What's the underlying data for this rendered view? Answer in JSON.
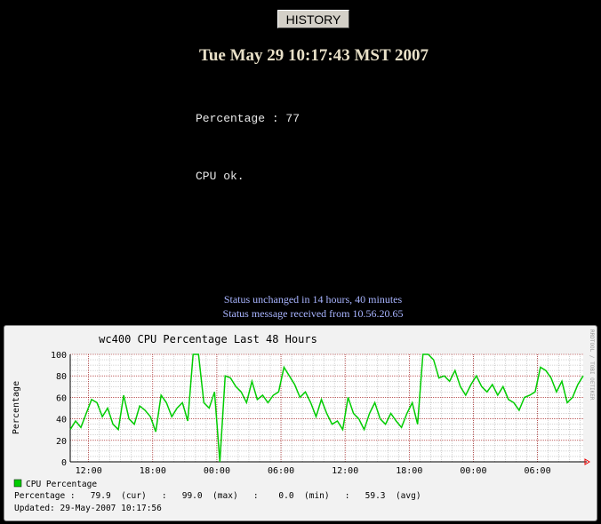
{
  "history_button": "HISTORY",
  "date": "Tue May 29 10:17:43 MST 2007",
  "percentage_line": "Percentage : 77",
  "status_text": "CPU ok.",
  "status_unchanged": "Status unchanged in 14 hours, 40 minutes",
  "status_received": "Status message received from 10.56.20.65",
  "colors": {
    "line": "#00cc00",
    "major_grid": "#990000",
    "minor_grid": "#aaaaaa"
  },
  "chart_data": {
    "type": "line",
    "title": "wc400 CPU Percentage Last 48 Hours",
    "ylabel": "Percentage",
    "xlabel": "",
    "ylim": [
      0,
      100
    ],
    "yticks": [
      "0",
      "20",
      "40",
      "60",
      "80",
      "100"
    ],
    "xticks": [
      "12:00",
      "18:00",
      "00:00",
      "06:00",
      "12:00",
      "18:00",
      "00:00",
      "06:00"
    ],
    "xtick_hours_from_start": [
      1.72,
      7.72,
      13.72,
      19.72,
      25.72,
      31.72,
      37.72,
      43.72
    ],
    "x_range_hours": [
      0,
      48
    ],
    "sample_interval_hours": 0.5,
    "grid": true,
    "side_label": "RRDTOOL / TOBI OETIKER",
    "series": [
      {
        "name": "CPU Percentage",
        "values": [
          30,
          38,
          32,
          45,
          58,
          55,
          42,
          50,
          35,
          30,
          62,
          40,
          35,
          52,
          48,
          42,
          28,
          62,
          55,
          42,
          50,
          55,
          38,
          100,
          100,
          55,
          50,
          65,
          0,
          80,
          78,
          70,
          65,
          55,
          75,
          58,
          62,
          55,
          62,
          65,
          88,
          80,
          72,
          60,
          65,
          55,
          42,
          58,
          45,
          35,
          38,
          30,
          60,
          45,
          40,
          30,
          45,
          55,
          40,
          35,
          45,
          38,
          32,
          45,
          55,
          35,
          100,
          100,
          95,
          78,
          80,
          75,
          85,
          70,
          62,
          72,
          80,
          70,
          65,
          72,
          62,
          70,
          58,
          55,
          48,
          60,
          62,
          65,
          88,
          85,
          78,
          65,
          75,
          55,
          60,
          72,
          80
        ]
      }
    ],
    "legend": {
      "entry": "CPU Percentage",
      "stats_line": "Percentage :   79.9  (cur)   :   99.0  (max)   :    0.0  (min)   :   59.3  (avg)",
      "updated": "Updated: 29-May-2007 10:17:56"
    }
  }
}
